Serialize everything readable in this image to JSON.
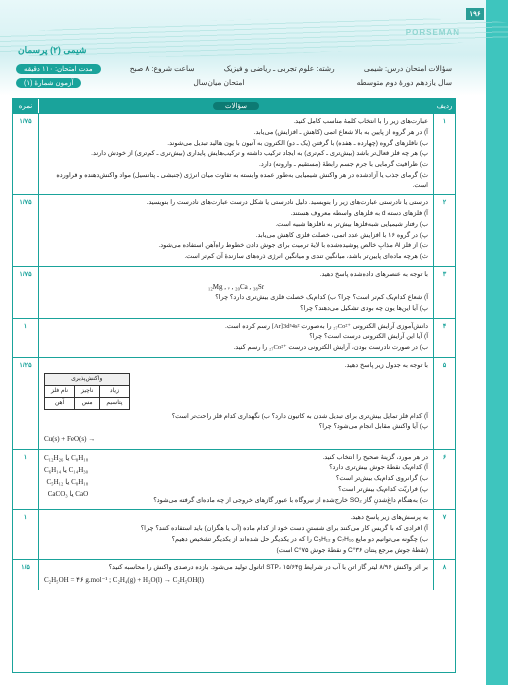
{
  "pageNumber": "۱۹۶",
  "brand": "PORSEMAN",
  "breadcrumb": "شیمی (۲)   پرسمان",
  "header": {
    "row1": {
      "right": "سؤالات امتحان درس: شیمی",
      "mid": "رشته: علوم تجربی ـ ریاضی و فیزیک",
      "left1": "ساعت شروع: ۸ صبح",
      "left2": "مدت امتحان: ۱۱۰ دقیقه"
    },
    "row2": {
      "right": "سال یازدهم دورۀ دوم متوسطه",
      "mid": "امتحان میان‌سال",
      "left": "آزمون شمارۀ (۱)"
    }
  },
  "tableHead": {
    "num": "ردیف",
    "q": "سؤالات",
    "score": "نمره"
  },
  "rows": [
    {
      "num": "۱",
      "score": "۱/۷۵",
      "lines": [
        "عبارت‌های زیر را با انتخاب کلمۀ مناسب کامل کنید.",
        "آ) در هر گروه از پایین به بالا شعاع اتمی (کاهش ـ افزایش) می‌یابد.",
        "ب) نافلزهای گروه (چهارده ـ هفده) با گرفتن (یک ـ دو) الکترون به آنیون با یون هالید تبدیل می‌شوند.",
        "پ) هر چه فلز فعال‌تر باشد (بیش‌تری ـ کم‌تری) به ایجاد ترکیب داشته و ترکیب‌هایش پایداری (بیش‌تری ـ کم‌تری) از خودش دارند.",
        "ت) ظرافیت گرمایی با جرم جسم رابطۀ (مستقیم ـ وارونه) دارد.",
        "ث) گرمای جذب یا آزادشده در هر واکنش شیمیایی به‌طور عمده وابسته به تفاوت میان انرژی (جنبشی ـ پتانسیل) مواد واکنش‌دهنده و فراورده است."
      ]
    },
    {
      "num": "۲",
      "score": "۱/۷۵",
      "lines": [
        "درستی یا نادرستی عبارت‌های زیر را بنویسید. دلیل نادرستی یا شکل درست عبارت‌های نادرست را بنویسید.",
        "آ) فلزهای دسته d به فلزهای واسطه معروف هستند.",
        "ب) رفتار شیمیایی شبه‌فلزها بیش‌تر به نافلزها شبیه است.",
        "پ) در گروه ۱۶ با افزایش عدد اتمی، خصلت فلزی کاهش می‌یابد.",
        "ت) از فلز Al مذابِ خالص پوشیده‌شده با لایۀ ترمیت برای جوش دادن خطوط راه‌آهن استفاده می‌شود.",
        "ث) هرچه ماده‌ای پایین‌تر باشد، میانگین تندی و میانگین انرژی ذره‌های سازندۀ آن کم‌تر است."
      ]
    },
    {
      "num": "۳",
      "score": "۱/۷۵",
      "lines": [
        "با توجه به عنصرهای داده‌شده پاسخ دهید."
      ],
      "formulaCenter": "₁₂Mg , ᵥ , ₂₀Ca , ₃₈Sr",
      "lines2": [
        "آ) شعاع کدام‌یک کم‌تر است؟ چرا؟                                         ب) کدام‌یک خصلت فلزی بیش‌تری دارد؟ چرا؟",
        "پ) آیا این‌ها یون چه بودی تشکیل می‌دهند؟ چرا؟"
      ]
    },
    {
      "num": "۴",
      "score": "۱",
      "linesHtml": [
        "دانش‌آموزی آرایش الکترونی <span class='inline-ltr'>₂₇Co²⁺</span> را به‌صورت <span class='inline-ltr'>[Ar]3d⁵4s²</span> رسم کرده است.",
        "آ) آیا این آرایش الکترونی درست است؟ چرا؟",
        "ب) در صورت نادرست بودن، آرایش الکترونی درست <span class='inline-ltr'>₂₇Co²⁺</span> را رسم کنید."
      ]
    },
    {
      "num": "۵",
      "score": "۱/۲۵",
      "lines": [
        "با توجه به جدول زیر پاسخ دهید."
      ],
      "miniTable": {
        "headers": [
          "واکنش‌پذیری",
          "",
          ""
        ],
        "row1": [
          "زیاد",
          "ناچیز",
          "نام فلز"
        ],
        "row2": [
          "پتاسیم",
          "مس",
          "آهن"
        ]
      },
      "lines2": [
        "آ) کدام فلز تمایل بیش‌تری برای تبدیل شدن به کاتیون دارد؟            ب) نگهداری کدام فلز راحت‌تر است؟",
        "پ) آیا واکنش مقابل انجام می‌شود؟ چرا؟"
      ],
      "formulaLeft": "Cu(s) + FeO(s) →"
    },
    {
      "num": "۶",
      "score": "۱",
      "twoCol": {
        "right": [
          "در هر مورد، گزینۀ صحیح را انتخاب کنید.",
          "آ) کدام‌یک نقطۀ جوش بیش‌تری دارد؟",
          "ب) گرانروی کدام‌یک بیش‌تر است؟",
          "پ) فراریّت کدام‌یک بیش‌تر است؟",
          "ت) به‌هنگام داغ‌شدنِ گاز SO₂ خارج‌شده از نیروگاه با عبور گازهای خروجی از چه ماده‌ای گرفته می‌شود؟"
        ],
        "left": [
          "C₁₂H₂₆ یا C₈H₁₈",
          "C₆H₁₄ یا C₁₄H₃₀",
          "C₅H₁₂ یا C₈H₁₈",
          "CaCO₃ یا CaO"
        ]
      }
    },
    {
      "num": "۷",
      "score": "۱",
      "lines": [
        "به پرسش‌های زیر پاسخ دهید.",
        "آ) افرادی که با گریس کار می‌کنند برای شستنِ دست خود از کدام ماده (آب یا هگزان) باید استفاده کنند؟ چرا؟",
        "ب) چگونه می‌توانیم دو مایع C₇H₁₆ و C₅H₁₂ را که در یکدیگر حل شده‌اند از یکدیگر تشخیص دهیم؟",
        "(نقطۀ جوش مرجع پنتان ۳۶°C و نقطۀ جوش ۷۵°C است)"
      ]
    },
    {
      "num": "۸",
      "score": "۱/۵",
      "lines": [
        "بر اثر واکنش ۸/۹۶ لیتر گاز اتن با آب در شرایط STP، ۱۵/۶۴g اتانول تولید می‌شود. بازده درصدی واکنش را محاسبه کنید؟"
      ],
      "formulaLeft": "C₂H₅OH = ۴۶ g.mol⁻¹   ;   C₂H₄(g) + H₂O(l) → C₂H₅OH(l)"
    }
  ]
}
